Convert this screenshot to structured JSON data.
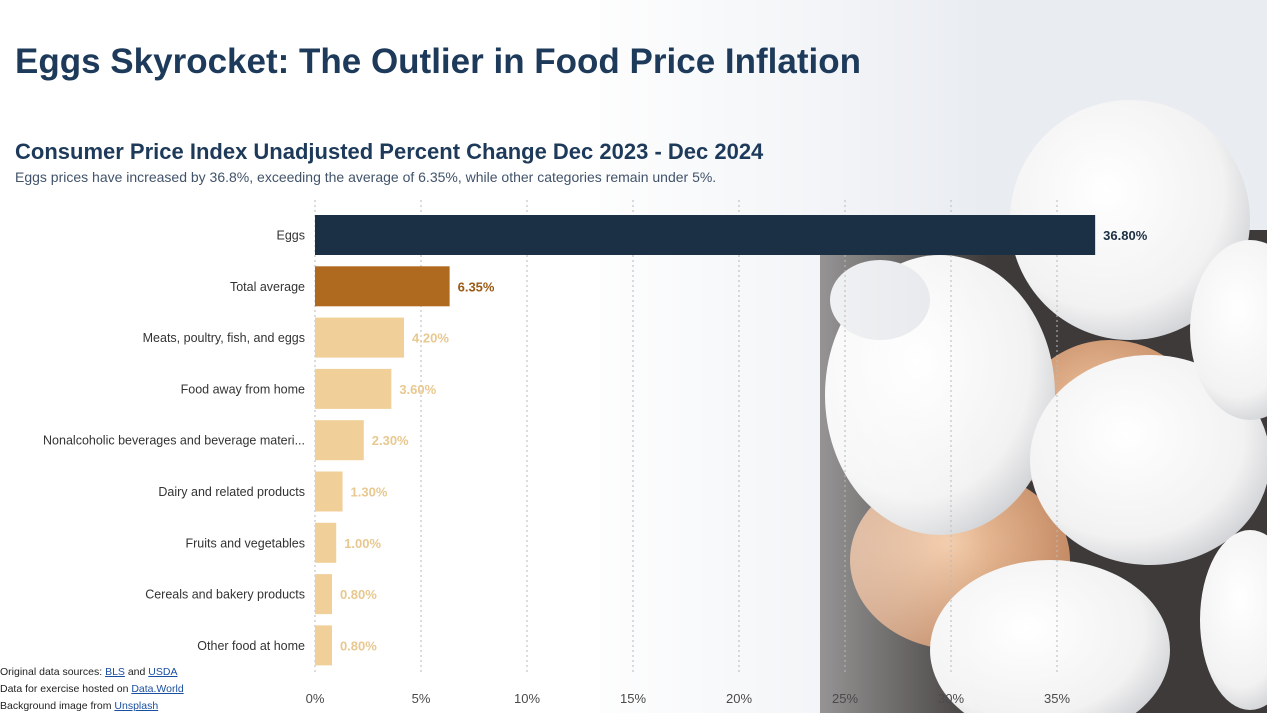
{
  "header": {
    "title": "Eggs Skyrocket: The Outlier in Food Price Inflation"
  },
  "chart_data": {
    "type": "bar",
    "orientation": "horizontal",
    "title": "Consumer Price Index Unadjusted Percent Change Dec 2023 - Dec 2024",
    "subtitle": "Eggs prices have increased by 36.8%, exceeding the average of 6.35%, while other categories remain under 5%.",
    "categories": [
      "Eggs",
      "Total average",
      "Meats, poultry, fish, and eggs",
      "Food away from home",
      "Nonalcoholic beverages and beverage materi...",
      "Dairy and related products",
      "Fruits and vegetables",
      "Cereals and bakery products",
      "Other food at home"
    ],
    "values": [
      36.8,
      6.35,
      4.2,
      3.6,
      2.3,
      1.3,
      1.0,
      0.8,
      0.8
    ],
    "data_labels": [
      "36.80%",
      "6.35%",
      "4.20%",
      "3.60%",
      "2.30%",
      "1.30%",
      "1.00%",
      "0.80%",
      "0.80%"
    ],
    "bar_colors": [
      "#1b2f45",
      "#b06a1f",
      "#f0cf98",
      "#f0cf98",
      "#f0cf98",
      "#f0cf98",
      "#f0cf98",
      "#f0cf98",
      "#f0cf98"
    ],
    "label_colors": [
      "#1b2f45",
      "#9a5a14",
      "#e8c890",
      "#e8c890",
      "#e8c890",
      "#e8c890",
      "#e8c890",
      "#e8c890",
      "#e8c890"
    ],
    "xlim": [
      0,
      37
    ],
    "xticks": [
      0,
      5,
      10,
      15,
      20,
      25,
      30,
      35
    ],
    "xtick_labels": [
      "0%",
      "5%",
      "10%",
      "15%",
      "20%",
      "25%",
      "30%",
      "35%"
    ],
    "grid": "vertical dotted",
    "legend": "none"
  },
  "footer": {
    "line1_prefix": "Original data sources: ",
    "link_bls": "BLS",
    "line1_mid": " and ",
    "link_usda": "USDA",
    "line2_prefix": "Data for exercise hosted on ",
    "link_dataworld": "Data.World",
    "line3_prefix": "Background image from ",
    "link_unsplash": "Unsplash"
  }
}
